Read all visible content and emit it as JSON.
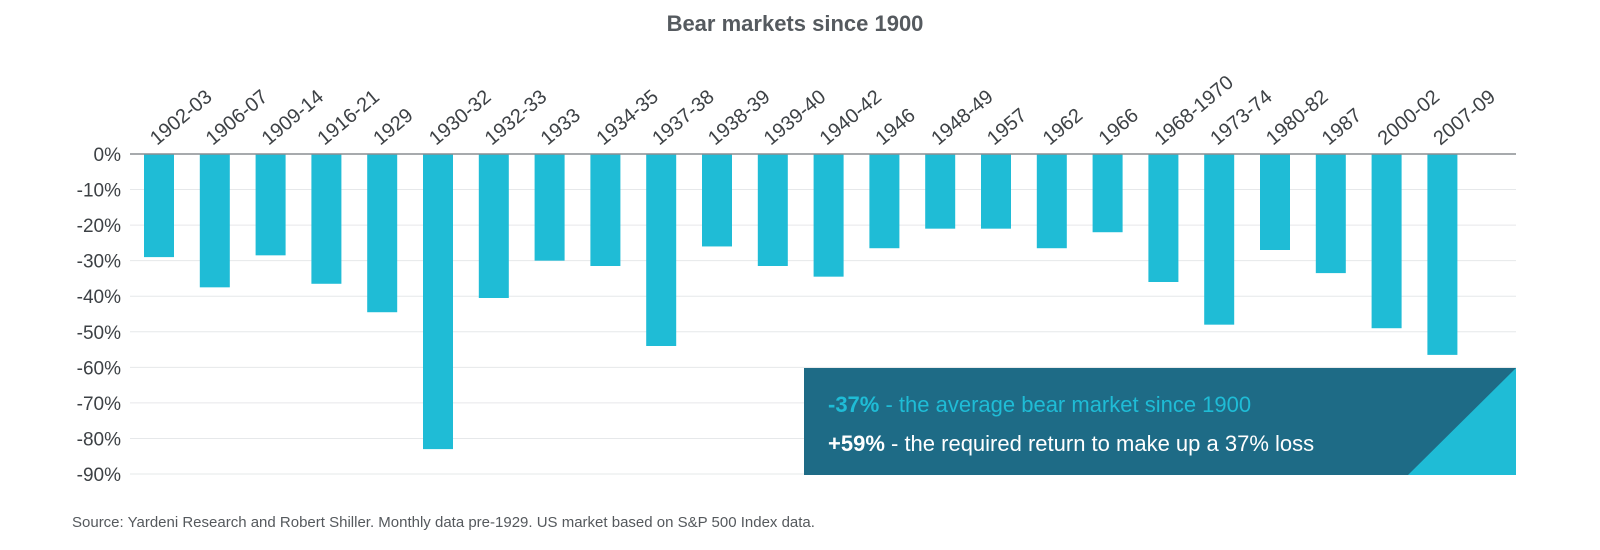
{
  "chart_data": {
    "type": "bar",
    "title": "Bear markets since 1900",
    "xlabel": "",
    "ylabel": "",
    "ylim": [
      -90,
      0
    ],
    "yticks": [
      0,
      -10,
      -20,
      -30,
      -40,
      -50,
      -60,
      -70,
      -80,
      -90
    ],
    "ytick_labels": [
      "0%",
      "-10%",
      "-20%",
      "-30%",
      "-40%",
      "-50%",
      "-60%",
      "-70%",
      "-80%",
      "-90%"
    ],
    "grid": true,
    "categories": [
      "1902-03",
      "1906-07",
      "1909-14",
      "1916-21",
      "1929",
      "1930-32",
      "1932-33",
      "1933",
      "1934-35",
      "1937-38",
      "1938-39",
      "1939-40",
      "1940-42",
      "1946",
      "1948-49",
      "1957",
      "1962",
      "1966",
      "1968-1970",
      "1973-74",
      "1980-82",
      "1987",
      "2000-02",
      "2007-09"
    ],
    "values": [
      -29,
      -37.5,
      -28.5,
      -36.5,
      -44.5,
      -83,
      -40.5,
      -30,
      -31.5,
      -54,
      -26,
      -31.5,
      -34.5,
      -26.5,
      -21,
      -21,
      -26.5,
      -22,
      -36,
      -48,
      -27,
      -33.5,
      -49,
      -56.5
    ],
    "bar_color": "#1fbcd6",
    "callout": {
      "line1_highlight": "-37%",
      "line1_text": " - the average bear market since 1900",
      "line2_highlight": "+59%",
      "line2_text": " - the required return to make up a 37% loss",
      "box_color": "#1e6b86",
      "highlight_color": "#1fbcd6",
      "text_color": "#ffffff"
    },
    "source": "Source: Yardeni Research and Robert Shiller. Monthly data pre-1929. US market based on S&P 500 Index data."
  }
}
